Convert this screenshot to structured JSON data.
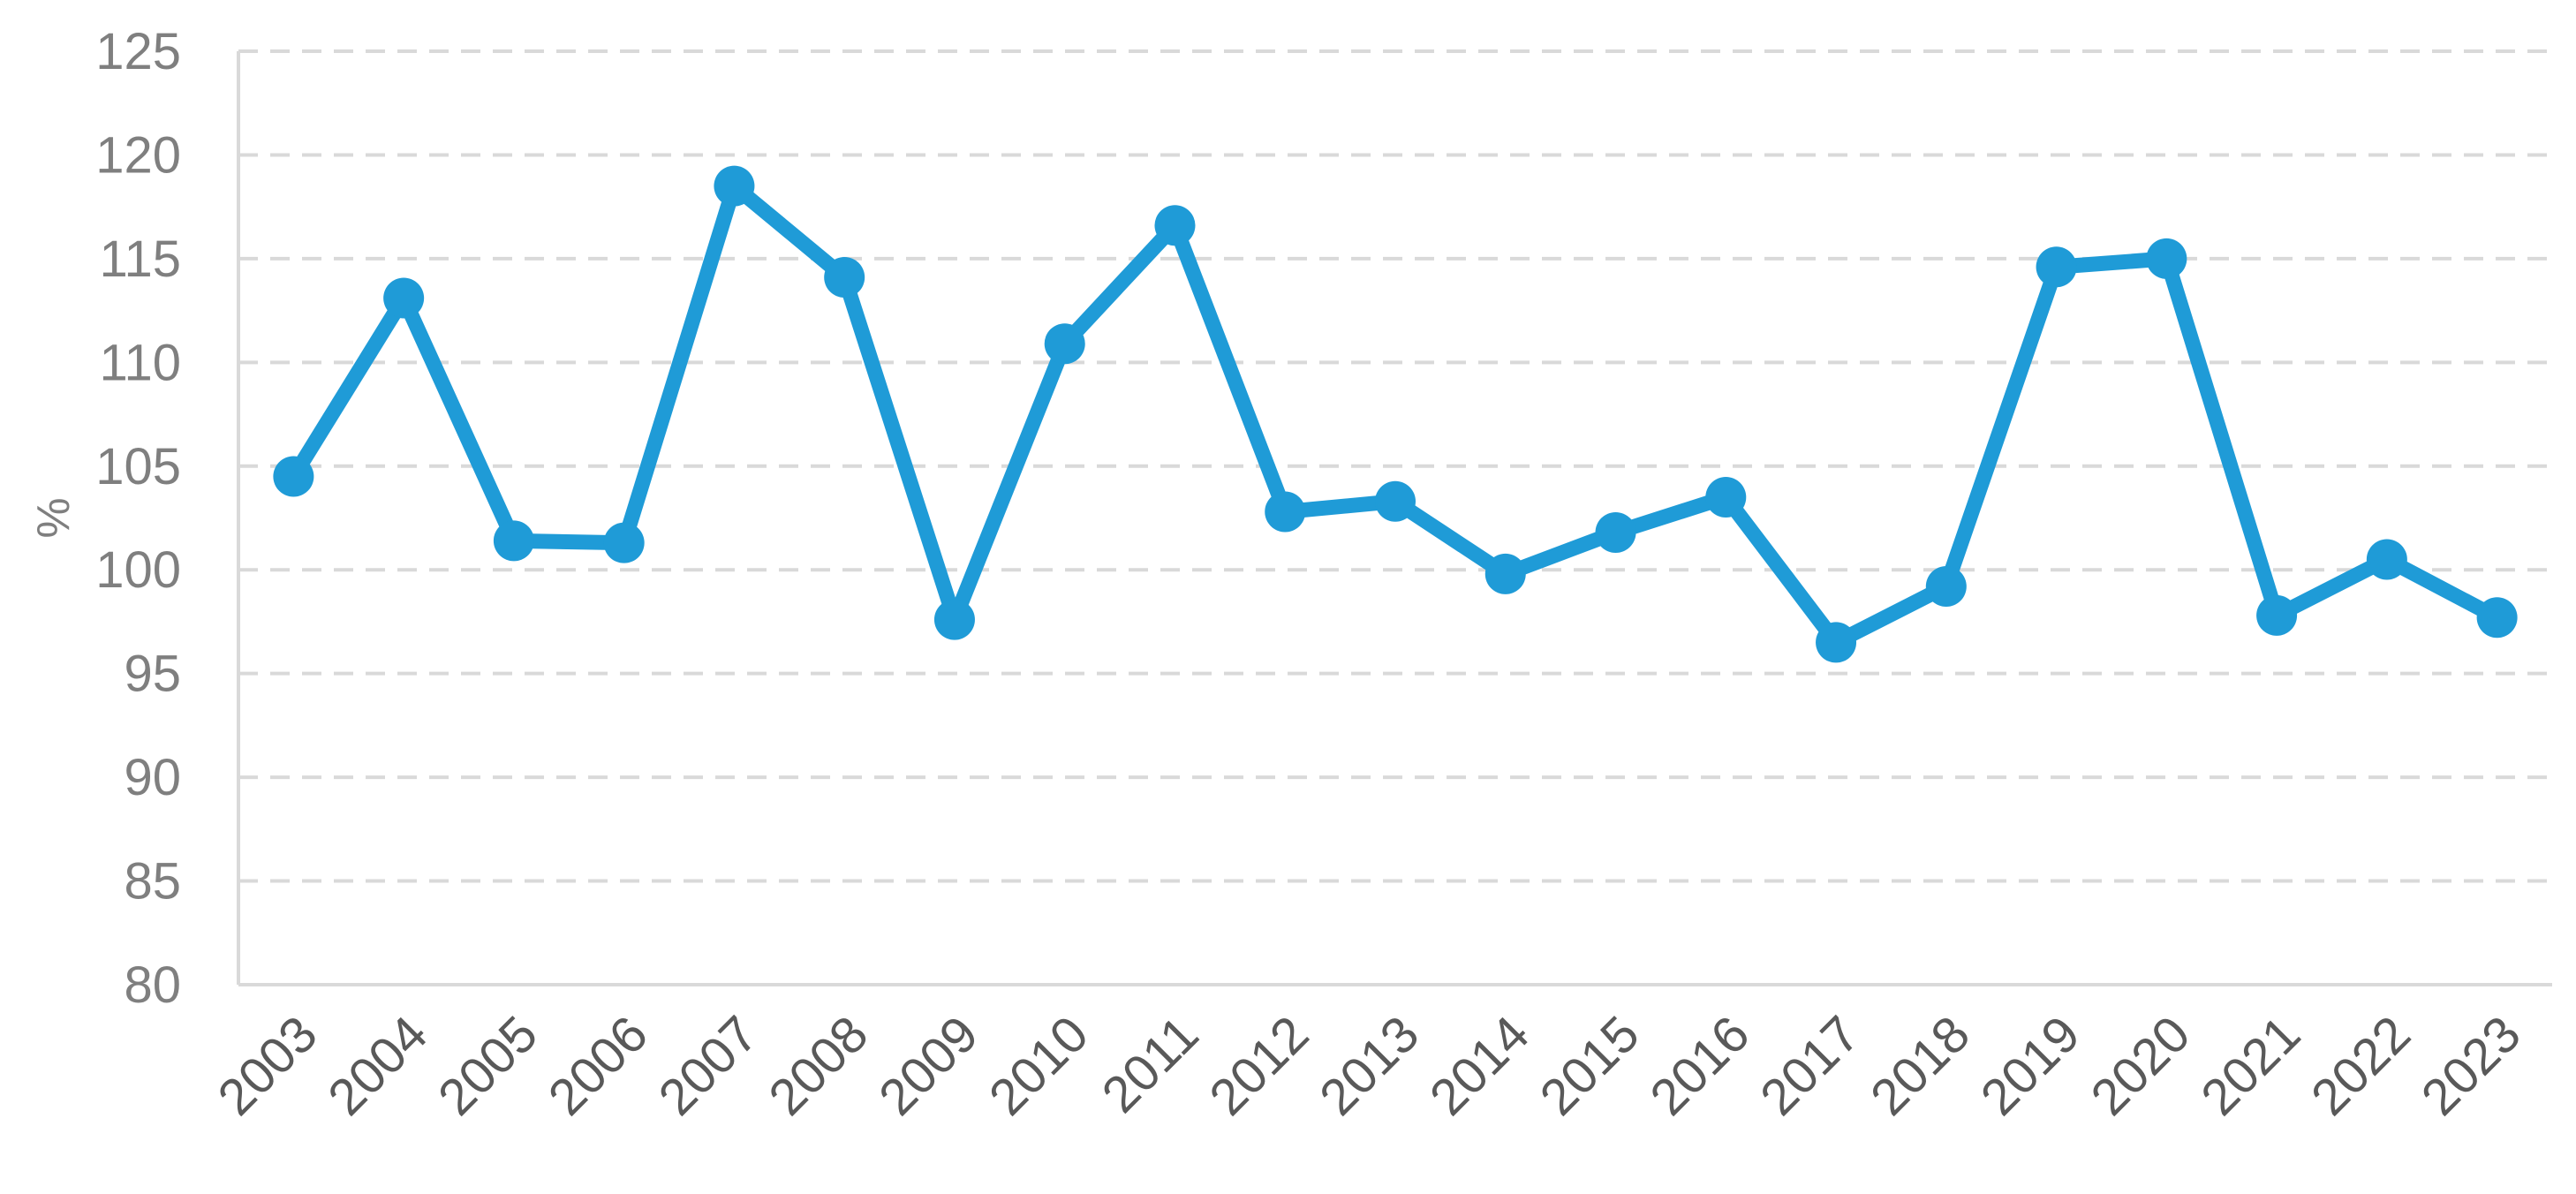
{
  "chart_data": {
    "type": "line",
    "x": [
      "2003",
      "2004",
      "2005",
      "2006",
      "2007",
      "2008",
      "2009",
      "2010",
      "2011",
      "2012",
      "2013",
      "2014",
      "2015",
      "2016",
      "2017",
      "2018",
      "2019",
      "2020",
      "2021",
      "2022",
      "2023"
    ],
    "series": [
      {
        "values": [
          104.5,
          113.1,
          101.4,
          101.3,
          118.5,
          114.1,
          97.6,
          110.9,
          116.6,
          102.8,
          103.3,
          99.8,
          101.8,
          103.5,
          96.5,
          99.2,
          114.6,
          115.0,
          97.8,
          100.5,
          97.7
        ],
        "color": "#1f9bd7"
      }
    ],
    "ylabel": "%",
    "xlabel": "",
    "ylim": [
      80,
      125
    ],
    "yticks": [
      80,
      85,
      90,
      95,
      100,
      105,
      110,
      115,
      120,
      125
    ],
    "grid": true,
    "legend": "none"
  }
}
